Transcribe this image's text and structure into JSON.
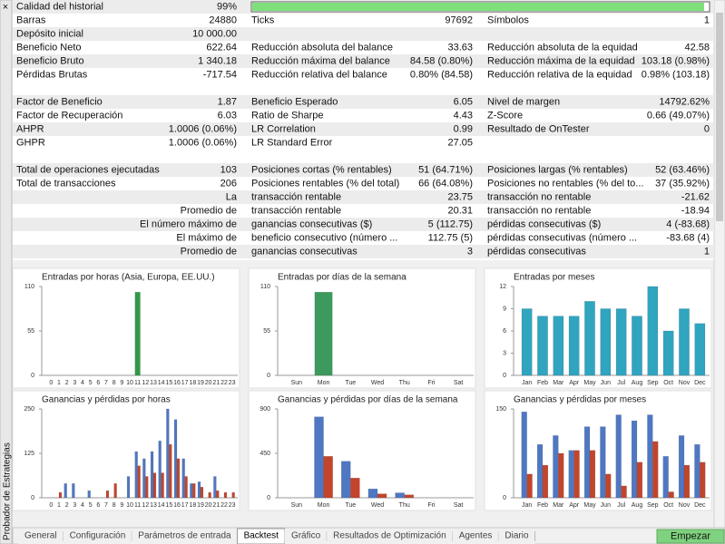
{
  "sidebar": {
    "close": "×",
    "title": "Probador de Estrategias"
  },
  "report": {
    "quality": {
      "label": "Calidad del historial",
      "value": 99,
      "value_label": "99%"
    },
    "sections": [
      [
        {
          "l": "Barras",
          "lv": "24880",
          "m": "Ticks",
          "mv": "97692",
          "r": "Símbolos",
          "rv": "1"
        },
        {
          "l": "Depósito inicial",
          "lv": "10 000.00"
        },
        {
          "l": "Beneficio Neto",
          "lv": "622.64",
          "m": "Reducción absoluta del balance",
          "mv": "33.63",
          "r": "Reducción absoluta de la equidad",
          "rv": "42.58"
        },
        {
          "l": "Beneficio Bruto",
          "lv": "1 340.18",
          "m": "Reducción máxima del balance",
          "mv": "84.58 (0.80%)",
          "r": "Reducción máxima de la equidad",
          "rv": "103.18 (0.98%)"
        },
        {
          "l": "Pérdidas Brutas",
          "lv": "-717.54",
          "m": "Reducción relativa del balance",
          "mv": "0.80% (84.58)",
          "r": "Reducción relativa de la equidad",
          "rv": "0.98% (103.18)"
        }
      ],
      [
        {
          "l": "Factor de Beneficio",
          "lv": "1.87",
          "m": "Beneficio Esperado",
          "mv": "6.05",
          "r": "Nivel de margen",
          "rv": "14792.62%"
        },
        {
          "l": "Factor de Recuperación",
          "lv": "6.03",
          "m": "Ratio de Sharpe",
          "mv": "4.43",
          "r": "Z-Score",
          "rv": "0.66 (49.07%)"
        },
        {
          "l": "AHPR",
          "lv": "1.0006 (0.06%)",
          "m": "LR Correlation",
          "mv": "0.99",
          "r": "Resultado de OnTester",
          "rv": "0"
        },
        {
          "l": "GHPR",
          "lv": "1.0006 (0.06%)",
          "m": "LR Standard Error",
          "mv": "27.05"
        }
      ],
      [
        {
          "l": "Total de operaciones ejecutadas",
          "lv": "103",
          "m": "Posiciones cortas (% rentables)",
          "mv": "51 (64.71%)",
          "r": "Posiciones largas (% rentables)",
          "rv": "52 (63.46%)"
        },
        {
          "l": "Total de transacciones",
          "lv": "206",
          "m": "Posiciones rentables (% del total)",
          "mv": "66 (64.08%)",
          "r": "Posiciones no rentables (% del to...",
          "rv": "37 (35.92%)"
        },
        {
          "lv": "La",
          "m": "transacción rentable",
          "mv": "23.75",
          "r": "transacción no rentable",
          "rv": "-21.62"
        },
        {
          "lv": "Promedio de",
          "m": "transacción rentable",
          "mv": "20.31",
          "r": "transacción no rentable",
          "rv": "-18.94"
        },
        {
          "lv": "El número máximo de",
          "m": "ganancias consecutivas ($)",
          "mv": "5 (112.75)",
          "r": "pérdidas consecutivas ($)",
          "rv": "4 (-83.68)"
        },
        {
          "lv": "El máximo de",
          "m": "beneficio consecutivo (número ...",
          "mv": "112.75 (5)",
          "r": "pérdidas consecutivas (número ...",
          "rv": "-83.68 (4)"
        },
        {
          "lv": "Promedio de",
          "m": "ganancias consecutivas",
          "mv": "3",
          "r": "pérdidas consecutivas",
          "rv": "1"
        }
      ]
    ]
  },
  "chart_data": [
    {
      "type": "bar",
      "title": "Entradas por horas (Asia, Europa, EE.UU.)",
      "color": "#2f9a4a",
      "categories": [
        "0",
        "1",
        "2",
        "3",
        "4",
        "5",
        "6",
        "7",
        "8",
        "9",
        "10",
        "11",
        "12",
        "13",
        "14",
        "15",
        "16",
        "17",
        "18",
        "19",
        "20",
        "21",
        "22",
        "23"
      ],
      "values": [
        0,
        0,
        0,
        0,
        0,
        0,
        0,
        0,
        0,
        0,
        0,
        103,
        0,
        0,
        0,
        0,
        0,
        0,
        0,
        0,
        0,
        0,
        0,
        0
      ],
      "ylim": [
        0,
        110
      ],
      "yticks": [
        0,
        55,
        110
      ],
      "grid": false
    },
    {
      "type": "bar",
      "title": "Entradas por días de la semana",
      "color": "#3c9a5c",
      "categories": [
        "Sun",
        "Mon",
        "Tue",
        "Wed",
        "Thu",
        "Fri",
        "Sat"
      ],
      "values": [
        0,
        103,
        0,
        0,
        0,
        0,
        0
      ],
      "ylim": [
        0,
        110
      ],
      "yticks": [
        0,
        55,
        110
      ],
      "grid": false
    },
    {
      "type": "bar",
      "title": "Entradas por meses",
      "color": "#2fa5c0",
      "categories": [
        "Jan",
        "Feb",
        "Mar",
        "Apr",
        "May",
        "Jun",
        "Jul",
        "Aug",
        "Sep",
        "Oct",
        "Nov",
        "Dec"
      ],
      "values": [
        9,
        8,
        8,
        8,
        10,
        9,
        9,
        8,
        12,
        6,
        9,
        7
      ],
      "ylim": [
        0,
        12
      ],
      "yticks": [
        0,
        3,
        6,
        9,
        12
      ],
      "grid": false
    },
    {
      "type": "bar",
      "title": "Ganancias y pérdidas por horas",
      "categories": [
        "0",
        "1",
        "2",
        "3",
        "4",
        "5",
        "6",
        "7",
        "8",
        "9",
        "10",
        "11",
        "12",
        "13",
        "14",
        "15",
        "16",
        "17",
        "18",
        "19",
        "20",
        "21",
        "22",
        "23"
      ],
      "series": [
        {
          "color": "#4f77c2",
          "values": [
            0,
            0,
            40,
            40,
            0,
            20,
            0,
            0,
            0,
            0,
            60,
            130,
            110,
            130,
            160,
            250,
            220,
            110,
            40,
            45,
            0,
            60,
            0,
            0
          ]
        },
        {
          "color": "#c2452b",
          "values": [
            0,
            15,
            0,
            0,
            0,
            0,
            0,
            20,
            40,
            0,
            0,
            90,
            60,
            70,
            70,
            150,
            110,
            60,
            40,
            30,
            15,
            20,
            15,
            15
          ]
        }
      ],
      "ylim": [
        0,
        250
      ],
      "yticks": [
        0,
        125,
        250
      ],
      "grid": false
    },
    {
      "type": "bar",
      "title": "Ganancias y pérdidas por días de la semana",
      "categories": [
        "Sun",
        "Mon",
        "Tue",
        "Wed",
        "Thu",
        "Fri",
        "Sat"
      ],
      "series": [
        {
          "color": "#4f77c2",
          "values": [
            0,
            820,
            370,
            90,
            50,
            0,
            0
          ]
        },
        {
          "color": "#c2452b",
          "values": [
            0,
            420,
            200,
            40,
            30,
            0,
            0
          ]
        }
      ],
      "ylim": [
        0,
        900
      ],
      "yticks": [
        0,
        450,
        900
      ],
      "grid": false
    },
    {
      "type": "bar",
      "title": "Ganancias y pérdidas por meses",
      "categories": [
        "Jan",
        "Feb",
        "Mar",
        "Apr",
        "May",
        "Jun",
        "Jul",
        "Aug",
        "Sep",
        "Oct",
        "Nov",
        "Dec"
      ],
      "series": [
        {
          "color": "#4f77c2",
          "values": [
            145,
            90,
            105,
            80,
            120,
            120,
            140,
            130,
            140,
            70,
            105,
            90
          ]
        },
        {
          "color": "#c2452b",
          "values": [
            40,
            55,
            75,
            80,
            80,
            40,
            20,
            60,
            95,
            10,
            55,
            60
          ]
        }
      ],
      "ylim": [
        0,
        150
      ],
      "yticks": [
        0,
        150
      ],
      "grid": false
    }
  ],
  "tabs": [
    "General",
    "Configuración",
    "Parámetros de entrada",
    "Backtest",
    "Gráfico",
    "Resultados de Optimización",
    "Agentes",
    "Diario"
  ],
  "active_tab": 3,
  "button": "Empezar"
}
